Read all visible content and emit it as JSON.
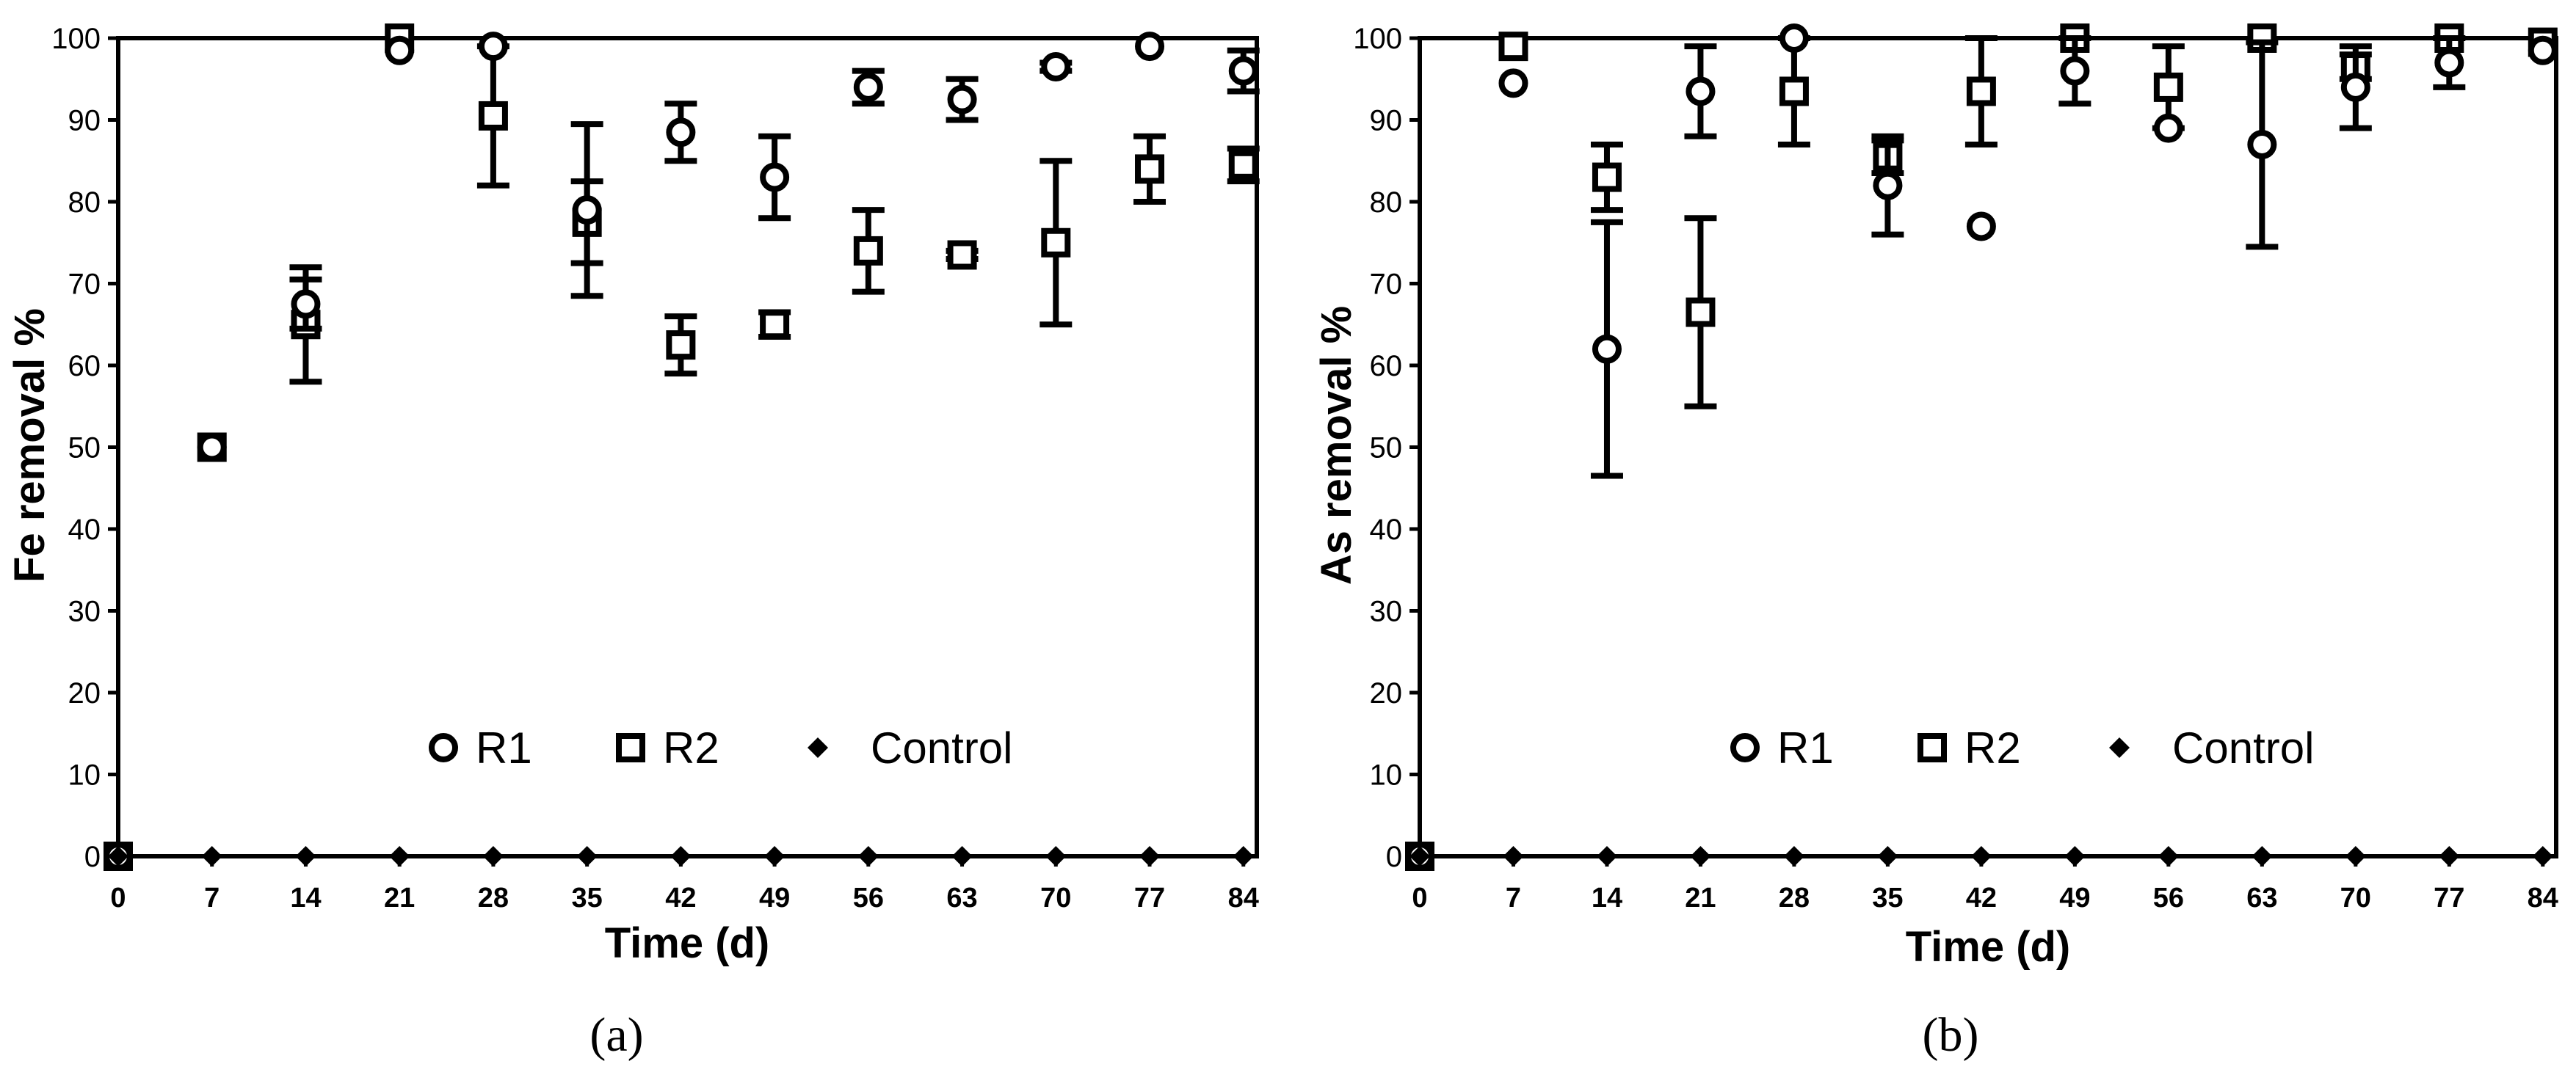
{
  "colors": {
    "ink": "#000000",
    "background": "#ffffff"
  },
  "chart_data": [
    {
      "type": "scatter",
      "panel_label": "(a)",
      "xlabel": "Time (d)",
      "ylabel": "Fe removal %",
      "x": [
        0,
        7,
        14,
        21,
        28,
        35,
        42,
        49,
        56,
        63,
        70,
        77,
        84
      ],
      "xticks": [
        0,
        7,
        14,
        21,
        28,
        35,
        42,
        49,
        56,
        63,
        70,
        77,
        84
      ],
      "yticks": [
        0,
        10,
        20,
        30,
        40,
        50,
        60,
        70,
        80,
        90,
        100
      ],
      "xlim": [
        0,
        85
      ],
      "ylim": [
        0,
        100
      ],
      "grid": false,
      "legend": {
        "placement": "lower-center"
      },
      "series": [
        {
          "name": "R1",
          "marker": "open-circle",
          "values": [
            0,
            50,
            67.5,
            98.5,
            99,
            79,
            88.5,
            83,
            94,
            92.5,
            96.5,
            99,
            96
          ],
          "errors": [
            0,
            0,
            3,
            0,
            0,
            10.5,
            3.5,
            5,
            2,
            2.5,
            0.5,
            0,
            2.5
          ]
        },
        {
          "name": "R2",
          "marker": "open-square",
          "values": [
            0,
            50,
            65,
            100,
            90.5,
            77.5,
            62.5,
            65,
            74,
            73.5,
            75,
            84,
            84.5
          ],
          "errors": [
            0,
            0,
            7,
            0,
            8.5,
            5,
            3.5,
            1.5,
            5,
            0.5,
            10,
            4,
            2
          ]
        },
        {
          "name": "Control",
          "marker": "filled-diamond",
          "values": [
            0,
            0,
            0,
            0,
            0,
            0,
            0,
            0,
            0,
            0,
            0,
            0,
            0
          ],
          "errors": [
            0,
            0,
            0,
            0,
            0,
            0,
            0,
            0,
            0,
            0,
            0,
            0,
            0
          ]
        }
      ]
    },
    {
      "type": "scatter",
      "panel_label": "(b)",
      "xlabel": "Time (d)",
      "ylabel": "As removal %",
      "x": [
        0,
        7,
        14,
        21,
        28,
        35,
        42,
        49,
        56,
        63,
        70,
        77,
        84
      ],
      "xticks": [
        0,
        7,
        14,
        21,
        28,
        35,
        42,
        49,
        56,
        63,
        70,
        77,
        84
      ],
      "yticks": [
        0,
        10,
        20,
        30,
        40,
        50,
        60,
        70,
        80,
        90,
        100
      ],
      "xlim": [
        0,
        85
      ],
      "ylim": [
        0,
        100
      ],
      "grid": false,
      "legend": {
        "placement": "lower-center"
      },
      "series": [
        {
          "name": "R1",
          "marker": "open-circle",
          "values": [
            0,
            94.5,
            62,
            93.5,
            100,
            82,
            77,
            96,
            89,
            87,
            94,
            97,
            98.5
          ],
          "errors": [
            0,
            0,
            15.5,
            5.5,
            0,
            6,
            0,
            4,
            0,
            12.5,
            5,
            3,
            0
          ]
        },
        {
          "name": "R2",
          "marker": "open-square",
          "values": [
            0,
            99,
            83,
            66.5,
            93.5,
            85.5,
            93.5,
            100,
            94,
            100,
            96.5,
            100,
            99.5
          ],
          "errors": [
            0,
            0,
            4,
            11.5,
            6.5,
            2,
            6.5,
            0,
            5,
            0,
            1.5,
            0,
            0
          ]
        },
        {
          "name": "Control",
          "marker": "filled-diamond",
          "values": [
            0,
            0,
            0,
            0,
            0,
            0,
            0,
            0,
            0,
            0,
            0,
            0,
            0
          ],
          "errors": [
            0,
            0,
            0,
            0,
            0,
            0,
            0,
            0,
            0,
            0,
            0,
            0,
            0
          ]
        }
      ]
    }
  ]
}
